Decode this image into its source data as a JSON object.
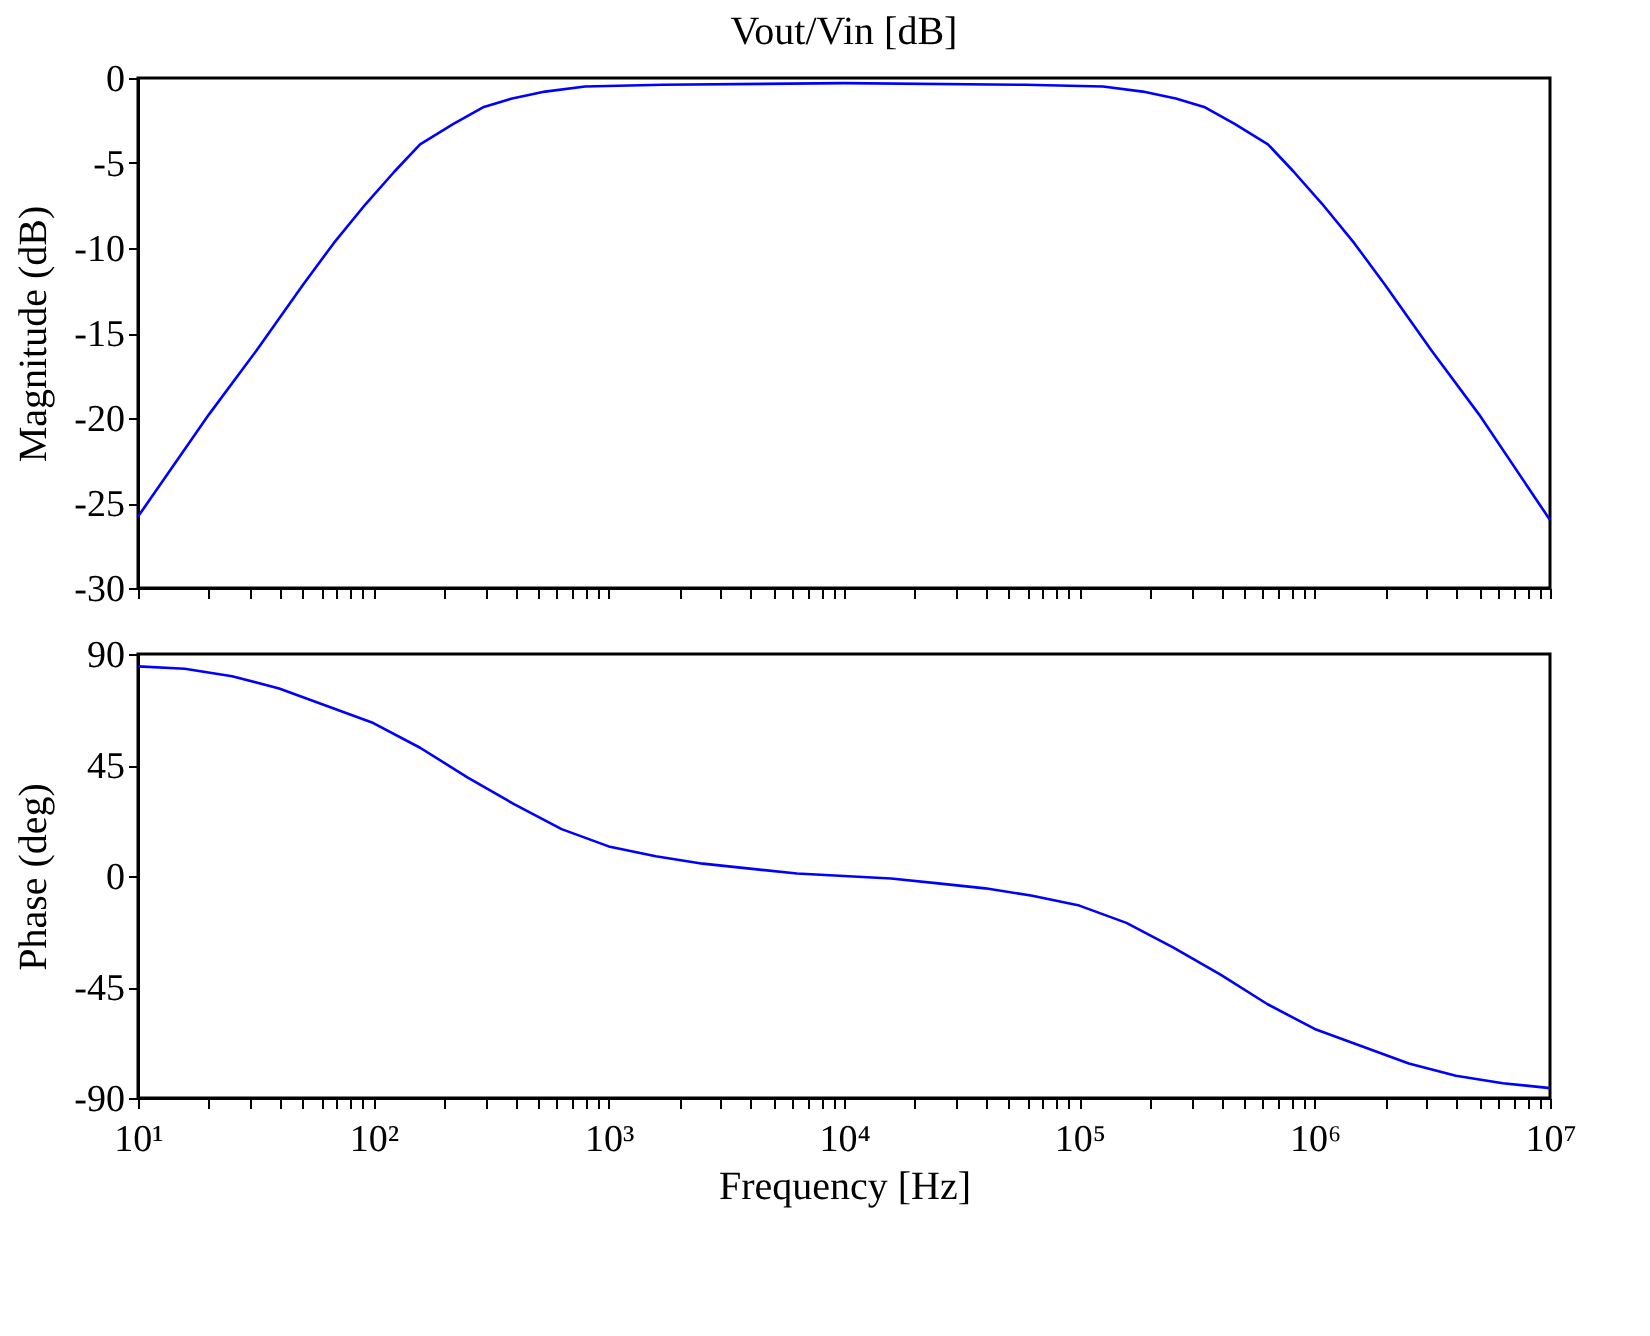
{
  "chart_data": [
    {
      "type": "line",
      "title": "Vout/Vin [dB]",
      "ylabel": "Magnitude (dB)",
      "log": "x",
      "grid": false,
      "tick_labels": "y",
      "xlim": [
        10,
        10000000
      ],
      "ylim": [
        -30,
        0
      ],
      "yticks": [
        -30,
        -25,
        -20,
        -15,
        -10,
        -5,
        0
      ],
      "xticks": [
        {
          "value": 10,
          "label": null
        },
        {
          "value": 20,
          "label": null
        },
        {
          "value": 30,
          "label": null
        },
        {
          "value": 40,
          "label": null
        },
        {
          "value": 50,
          "label": null
        },
        {
          "value": 60,
          "label": null
        },
        {
          "value": 70,
          "label": null
        },
        {
          "value": 80,
          "label": null
        },
        {
          "value": 90,
          "label": null
        },
        {
          "value": 100,
          "label": null
        },
        {
          "value": 200,
          "label": null
        },
        {
          "value": 300,
          "label": null
        },
        {
          "value": 400,
          "label": null
        },
        {
          "value": 500,
          "label": null
        },
        {
          "value": 600,
          "label": null
        },
        {
          "value": 700,
          "label": null
        },
        {
          "value": 800,
          "label": null
        },
        {
          "value": 900,
          "label": null
        },
        {
          "value": 1000,
          "label": null
        },
        {
          "value": 2000,
          "label": null
        },
        {
          "value": 3000,
          "label": null
        },
        {
          "value": 4000,
          "label": null
        },
        {
          "value": 5000,
          "label": null
        },
        {
          "value": 6000,
          "label": null
        },
        {
          "value": 7000,
          "label": null
        },
        {
          "value": 8000,
          "label": null
        },
        {
          "value": 9000,
          "label": null
        },
        {
          "value": 10000,
          "label": null
        },
        {
          "value": 20000,
          "label": null
        },
        {
          "value": 30000,
          "label": null
        },
        {
          "value": 40000,
          "label": null
        },
        {
          "value": 50000,
          "label": null
        },
        {
          "value": 60000,
          "label": null
        },
        {
          "value": 70000,
          "label": null
        },
        {
          "value": 80000,
          "label": null
        },
        {
          "value": 90000,
          "label": null
        },
        {
          "value": 100000,
          "label": null
        },
        {
          "value": 200000,
          "label": null
        },
        {
          "value": 300000,
          "label": null
        },
        {
          "value": 400000,
          "label": null
        },
        {
          "value": 500000,
          "label": null
        },
        {
          "value": 600000,
          "label": null
        },
        {
          "value": 700000,
          "label": null
        },
        {
          "value": 800000,
          "label": null
        },
        {
          "value": 900000,
          "label": null
        },
        {
          "value": 1000000,
          "label": null
        },
        {
          "value": 2000000,
          "label": null
        },
        {
          "value": 3000000,
          "label": null
        },
        {
          "value": 4000000,
          "label": null
        },
        {
          "value": 5000000,
          "label": null
        },
        {
          "value": 6000000,
          "label": null
        },
        {
          "value": 7000000,
          "label": null
        },
        {
          "value": 8000000,
          "label": null
        },
        {
          "value": 9000000,
          "label": null
        },
        {
          "value": 10000000,
          "label": null
        }
      ],
      "x": [
        10,
        20,
        32,
        50,
        68,
        93,
        123,
        158,
        219,
        295,
        389,
        537,
        794,
        1700,
        10000,
        58800,
        126000,
        186000,
        257000,
        339000,
        457000,
        633000,
        813000,
        1075000,
        1470000,
        2000000,
        3125000,
        5000000,
        10000000
      ],
      "series": [
        {
          "color": "#0000ff",
          "values": [
            -25.8,
            -19.8,
            -16,
            -12.2,
            -9.7,
            -7.4,
            -5.5,
            -3.9,
            -2.7,
            -1.7,
            -1.2,
            -0.8,
            -0.5,
            -0.4,
            -0.3,
            -0.4,
            -0.5,
            -0.8,
            -1.2,
            -1.7,
            -2.7,
            -3.9,
            -5.5,
            -7.4,
            -9.7,
            -12.2,
            -16,
            -19.8,
            -26
          ]
        }
      ]
    },
    {
      "type": "line",
      "ylabel": "Phase (deg)",
      "xlabel": "Frequency [Hz]",
      "log": "x",
      "grid": false,
      "xlim": [
        10,
        10000000
      ],
      "ylim": [
        -90,
        90
      ],
      "yticks": [
        -90,
        -45,
        0,
        45,
        90
      ],
      "xticks": [
        {
          "value": 10,
          "label": "10¹"
        },
        {
          "value": 20,
          "label": null
        },
        {
          "value": 30,
          "label": null
        },
        {
          "value": 40,
          "label": null
        },
        {
          "value": 50,
          "label": null
        },
        {
          "value": 60,
          "label": null
        },
        {
          "value": 70,
          "label": null
        },
        {
          "value": 80,
          "label": null
        },
        {
          "value": 90,
          "label": null
        },
        {
          "value": 100,
          "label": "10²"
        },
        {
          "value": 200,
          "label": null
        },
        {
          "value": 300,
          "label": null
        },
        {
          "value": 400,
          "label": null
        },
        {
          "value": 500,
          "label": null
        },
        {
          "value": 600,
          "label": null
        },
        {
          "value": 700,
          "label": null
        },
        {
          "value": 800,
          "label": null
        },
        {
          "value": 900,
          "label": null
        },
        {
          "value": 1000,
          "label": "10³"
        },
        {
          "value": 2000,
          "label": null
        },
        {
          "value": 3000,
          "label": null
        },
        {
          "value": 4000,
          "label": null
        },
        {
          "value": 5000,
          "label": null
        },
        {
          "value": 6000,
          "label": null
        },
        {
          "value": 7000,
          "label": null
        },
        {
          "value": 8000,
          "label": null
        },
        {
          "value": 9000,
          "label": null
        },
        {
          "value": 10000,
          "label": "10⁴"
        },
        {
          "value": 20000,
          "label": null
        },
        {
          "value": 30000,
          "label": null
        },
        {
          "value": 40000,
          "label": null
        },
        {
          "value": 50000,
          "label": null
        },
        {
          "value": 60000,
          "label": null
        },
        {
          "value": 70000,
          "label": null
        },
        {
          "value": 80000,
          "label": null
        },
        {
          "value": 90000,
          "label": null
        },
        {
          "value": 100000,
          "label": "10⁵"
        },
        {
          "value": 200000,
          "label": null
        },
        {
          "value": 300000,
          "label": null
        },
        {
          "value": 400000,
          "label": null
        },
        {
          "value": 500000,
          "label": null
        },
        {
          "value": 600000,
          "label": null
        },
        {
          "value": 700000,
          "label": null
        },
        {
          "value": 800000,
          "label": null
        },
        {
          "value": 900000,
          "label": null
        },
        {
          "value": 1000000,
          "label": "10⁶"
        },
        {
          "value": 2000000,
          "label": null
        },
        {
          "value": 3000000,
          "label": null
        },
        {
          "value": 4000000,
          "label": null
        },
        {
          "value": 5000000,
          "label": null
        },
        {
          "value": 6000000,
          "label": null
        },
        {
          "value": 7000000,
          "label": null
        },
        {
          "value": 8000000,
          "label": null
        },
        {
          "value": 9000000,
          "label": null
        },
        {
          "value": 10000000,
          "label": "10⁷"
        }
      ],
      "x": [
        10,
        15.8,
        25.1,
        39.8,
        63.1,
        100,
        158,
        251,
        398,
        631,
        1000,
        1585,
        2512,
        3981,
        6310,
        10000,
        15850,
        25120,
        39810,
        63100,
        100000,
        158500,
        251200,
        398100,
        631000,
        1000000,
        1585000,
        2512000,
        3981000,
        6310000,
        10000000
      ],
      "series": [
        {
          "color": "#0000ff",
          "values": [
            85,
            84,
            81,
            76,
            69,
            62,
            52,
            40,
            29,
            19,
            12,
            8,
            5,
            3,
            1,
            0,
            -1,
            -3,
            -5,
            -8,
            -12,
            -19,
            -29,
            -40,
            -52,
            -62,
            -69,
            -76,
            -81,
            -84,
            -86
          ]
        }
      ]
    }
  ]
}
